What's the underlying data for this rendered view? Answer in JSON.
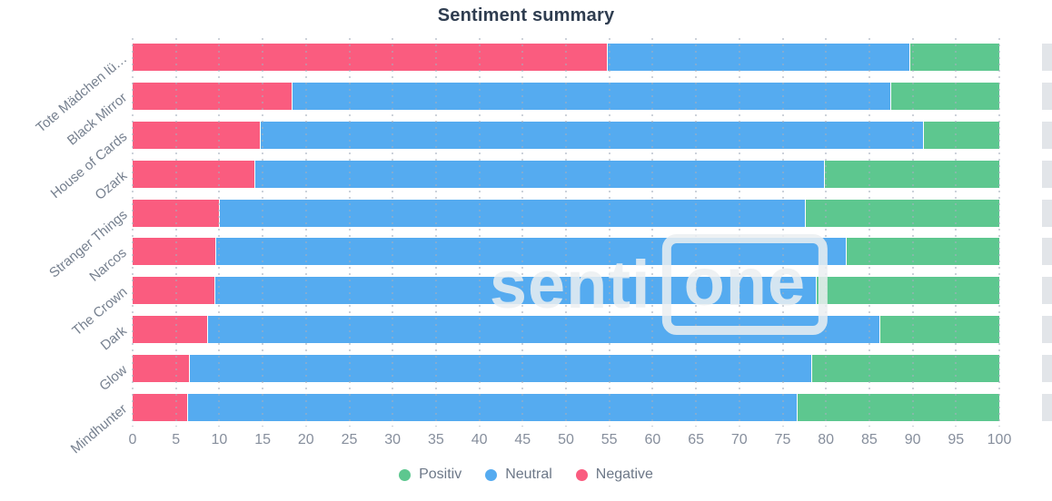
{
  "title": "Sentiment summary",
  "watermark": {
    "part1": "senti",
    "part2": "one"
  },
  "legend": [
    {
      "label": "Positiv",
      "color": "#5dc78f"
    },
    {
      "label": "Neutral",
      "color": "#55abf0"
    },
    {
      "label": "Negative",
      "color": "#fa5c7f"
    }
  ],
  "colors": {
    "positive": "#5dc78f",
    "neutral": "#55abf0",
    "negative": "#fa5c7f",
    "title_text": "#2f3d50",
    "axis_text": "#868e9c",
    "category_text": "#76808f"
  },
  "chart_data": {
    "type": "bar",
    "orientation": "horizontal",
    "stacked": true,
    "title": "Sentiment summary",
    "xlabel": "",
    "ylabel": "",
    "xlim": [
      0,
      100
    ],
    "xticks": [
      0,
      5,
      10,
      15,
      20,
      25,
      30,
      35,
      40,
      45,
      50,
      55,
      60,
      65,
      70,
      75,
      80,
      85,
      90,
      95,
      100
    ],
    "grid": "dotted-vertical",
    "legend_position": "bottom-center",
    "categories": [
      "Tote Mädchen lü…",
      "Black Mirror",
      "House of Cards",
      "Ozark",
      "Stranger Things",
      "Narcos",
      "The Crown",
      "Dark",
      "Glow",
      "Mindhunter"
    ],
    "series": [
      {
        "name": "Negative",
        "color": "#fa5c7f",
        "values": [
          54.7,
          18.3,
          14.7,
          14.0,
          10.0,
          9.5,
          9.4,
          8.6,
          6.5,
          6.3
        ]
      },
      {
        "name": "Neutral",
        "color": "#55abf0",
        "values": [
          34.9,
          69.1,
          76.5,
          65.8,
          67.6,
          72.8,
          69.4,
          77.6,
          71.8,
          70.3
        ]
      },
      {
        "name": "Positiv",
        "color": "#5dc78f",
        "values": [
          10.4,
          12.6,
          8.8,
          20.2,
          22.4,
          17.7,
          21.2,
          13.8,
          21.7,
          23.4
        ]
      }
    ]
  }
}
